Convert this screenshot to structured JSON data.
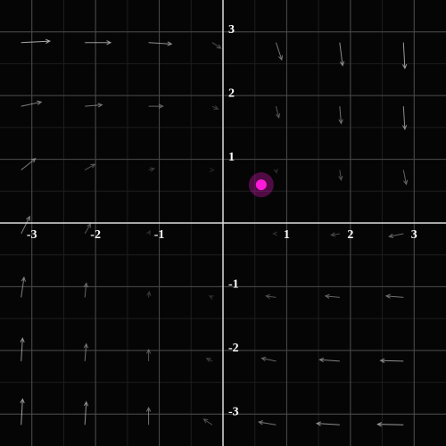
{
  "chart_data": {
    "type": "vector_field",
    "xlim": [
      -3.5,
      3.5
    ],
    "ylim": [
      -3.5,
      3.5
    ],
    "xticks": [
      -3,
      -2,
      -1,
      1,
      2,
      3
    ],
    "yticks": [
      -3,
      -2,
      -1,
      1,
      2,
      3
    ],
    "grid": true,
    "grid_x": [
      -3,
      -2,
      -1,
      0,
      1,
      2,
      3
    ],
    "grid_y": [
      3,
      2,
      1,
      0,
      -1,
      -2,
      -3
    ],
    "u": [
      [
        1,
        0.9,
        0.8,
        0.3,
        0.2,
        0.1,
        0.05
      ],
      [
        0.7,
        0.6,
        0.5,
        0.2,
        0.1,
        0.05,
        0.05
      ],
      [
        0.5,
        0.35,
        0.2,
        0.05,
        0.02,
        0.05,
        0.1
      ],
      [
        0.3,
        0.2,
        0.05,
        0,
        -0.1,
        -0.3,
        -0.5
      ],
      [
        0.1,
        0.05,
        0.02,
        -0.1,
        -0.35,
        -0.5,
        -0.6
      ],
      [
        0.05,
        0.05,
        0,
        -0.2,
        -0.5,
        -0.7,
        -0.8
      ],
      [
        0.05,
        0.05,
        0,
        -0.3,
        -0.6,
        -0.8,
        -0.9
      ]
    ],
    "v": [
      [
        0.05,
        0,
        -0.05,
        -0.2,
        -0.6,
        -0.8,
        -0.9
      ],
      [
        0.15,
        0.05,
        0,
        -0.1,
        -0.4,
        -0.6,
        -0.8
      ],
      [
        0.4,
        0.2,
        0.05,
        0,
        -0.1,
        -0.35,
        -0.5
      ],
      [
        0.6,
        0.35,
        0.1,
        0,
        0,
        -0.05,
        -0.1
      ],
      [
        0.7,
        0.5,
        0.2,
        0.05,
        0.05,
        0.05,
        0.05
      ],
      [
        0.8,
        0.6,
        0.4,
        0.1,
        0.1,
        0.05,
        0.02
      ],
      [
        0.9,
        0.8,
        0.6,
        0.2,
        0.1,
        0.05,
        0.02
      ]
    ],
    "arrow_color": "#bbbbbb",
    "point": {
      "x": 0.6,
      "y": 0.6,
      "color": "#ff1ad9"
    }
  }
}
